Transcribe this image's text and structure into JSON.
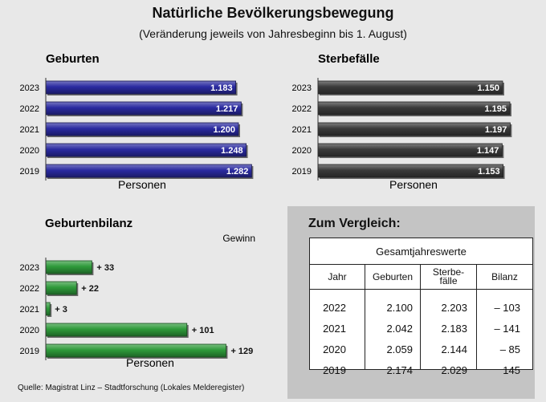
{
  "title": "Natürliche Bevölkerungsbewegung",
  "subtitle": "(Veränderung jeweils von Jahresbeginn bis 1. August)",
  "source": "Quelle: Magistrat Linz – Stadtforschung (Lokales Melderegister)",
  "colors": {
    "births": "#2a2aa0",
    "deaths": "#3a3a3a",
    "balance": "#2e9a3a",
    "panel": "#c4c4c4"
  },
  "chart_data": [
    {
      "type": "bar",
      "orientation": "horizontal",
      "title": "Geburten",
      "xlabel": "Personen",
      "categories": [
        "2023",
        "2022",
        "2021",
        "2020",
        "2019"
      ],
      "values": [
        1183,
        1217,
        1200,
        1248,
        1282
      ],
      "value_labels": [
        "1.183",
        "1.217",
        "1.200",
        "1.248",
        "1.282"
      ],
      "xlim": [
        0,
        1400
      ],
      "grid": false,
      "color": "#2a2aa0"
    },
    {
      "type": "bar",
      "orientation": "horizontal",
      "title": "Sterbefälle",
      "xlabel": "Personen",
      "categories": [
        "2023",
        "2022",
        "2021",
        "2020",
        "2019"
      ],
      "values": [
        1150,
        1195,
        1197,
        1147,
        1153
      ],
      "value_labels": [
        "1.150",
        "1.195",
        "1.197",
        "1.147",
        "1.153"
      ],
      "xlim": [
        0,
        1400
      ],
      "grid": false,
      "color": "#3a3a3a"
    },
    {
      "type": "bar",
      "orientation": "horizontal",
      "title": "Geburtenbilanz",
      "legend": "Gewinn",
      "xlabel": "Personen",
      "categories": [
        "2023",
        "2022",
        "2021",
        "2020",
        "2019"
      ],
      "values": [
        33,
        22,
        3,
        101,
        129
      ],
      "value_labels": [
        "+ 33",
        "+ 22",
        "+ 3",
        "+ 101",
        "+ 129"
      ],
      "xlim": [
        0,
        140
      ],
      "grid": false,
      "color": "#2e9a3a"
    },
    {
      "type": "table",
      "title": "Zum Vergleich:",
      "caption": "Gesamtjahreswerte",
      "columns": [
        "Jahr",
        "Geburten",
        "Sterbe-\nfälle",
        "Bilanz"
      ],
      "rows": [
        [
          "2022",
          "2.100",
          "2.203",
          "– 103"
        ],
        [
          "2021",
          "2.042",
          "2.183",
          "– 141"
        ],
        [
          "2020",
          "2.059",
          "2.144",
          "– 85"
        ],
        [
          "2019",
          "2.174",
          "2.029",
          "145"
        ]
      ]
    }
  ]
}
